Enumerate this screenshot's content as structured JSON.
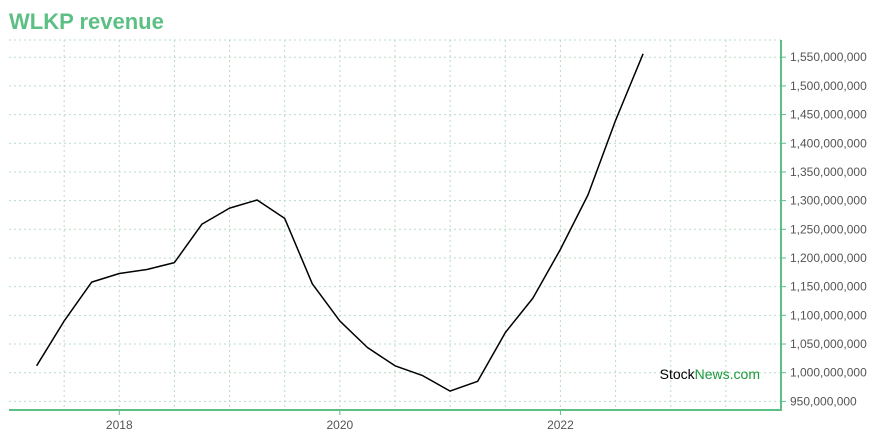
{
  "title": "WLKP revenue",
  "watermark": {
    "part1": "Stock",
    "part2": "News",
    "part3": ".com"
  },
  "colors": {
    "title": "#5cbf83",
    "axis": "#5cbf83",
    "grid": "#b9dcc6",
    "line": "#000000",
    "watermark_black": "#000000",
    "watermark_green": "#1a9a3c"
  },
  "chart_data": {
    "type": "line",
    "title": "WLKP revenue",
    "xlabel": "",
    "ylabel": "",
    "grid": true,
    "y_axis_position": "right",
    "x_ticks": [
      {
        "label": "2018",
        "value": 2018.0
      },
      {
        "label": "2020",
        "value": 2020.0
      },
      {
        "label": "2022",
        "value": 2022.0
      }
    ],
    "y_ticks": [
      950000000,
      1000000000,
      1050000000,
      1100000000,
      1150000000,
      1200000000,
      1250000000,
      1300000000,
      1350000000,
      1400000000,
      1450000000,
      1500000000,
      1550000000
    ],
    "y_tick_labels": [
      "950,000,000",
      "1,000,000,000",
      "1,050,000,000",
      "1,100,000,000",
      "1,150,000,000",
      "1,200,000,000",
      "1,250,000,000",
      "1,300,000,000",
      "1,350,000,000",
      "1,400,000,000",
      "1,450,000,000",
      "1,500,000,000",
      "1,550,000,000"
    ],
    "xlim": [
      2017.0,
      2024.0
    ],
    "ylim": [
      935000000,
      1580000000
    ],
    "series": [
      {
        "x": [
          2017.25,
          2017.5,
          2017.75,
          2018.0,
          2018.25,
          2018.5,
          2018.75,
          2019.0,
          2019.25,
          2019.5,
          2019.75,
          2020.0,
          2020.25,
          2020.5,
          2020.75,
          2021.0,
          2021.25,
          2021.5,
          2021.75,
          2022.0,
          2022.25,
          2022.5,
          2022.75
        ],
        "values": [
          1012000000,
          1090000000,
          1158000000,
          1173000000,
          1180000000,
          1192000000,
          1259000000,
          1287000000,
          1301000000,
          1269000000,
          1155000000,
          1090000000,
          1044000000,
          1012000000,
          995000000,
          968000000,
          985000000,
          1070000000,
          1130000000,
          1215000000,
          1310000000,
          1440000000,
          1556000000
        ]
      }
    ]
  }
}
